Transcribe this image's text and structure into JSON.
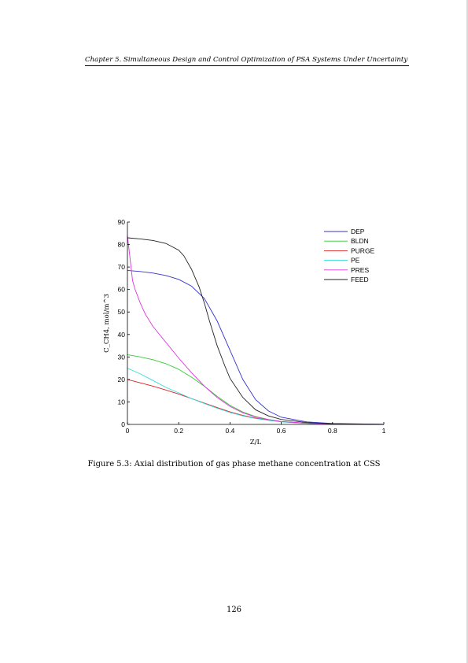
{
  "header": {
    "running_title": "Chapter 5. Simultaneous Design and Control Optimization of PSA Systems Under Uncertainty"
  },
  "figure": {
    "caption": "Figure 5.3: Axial distribution of gas phase methane concentration at CSS"
  },
  "footer": {
    "page_number": "126"
  },
  "chart_data": {
    "type": "line",
    "title": "",
    "xlabel": "Z/L",
    "ylabel": "C_CH4, mol/m^3",
    "xlim": [
      0,
      1
    ],
    "ylim": [
      0,
      90
    ],
    "xticks": [
      0,
      0.2,
      0.4,
      0.6,
      0.8,
      1
    ],
    "xtick_labels": [
      "0",
      "0.2",
      "0.4",
      "0.6",
      "0.8",
      "1"
    ],
    "yticks": [
      0,
      10,
      20,
      30,
      40,
      50,
      60,
      70,
      80,
      90
    ],
    "ytick_labels": [
      "0",
      "10",
      "20",
      "30",
      "40",
      "50",
      "60",
      "70",
      "80",
      "90"
    ],
    "grid": false,
    "legend_position": "top-right",
    "series": [
      {
        "name": "DEP",
        "color": "#3333cc",
        "x": [
          0,
          0.05,
          0.1,
          0.15,
          0.2,
          0.25,
          0.3,
          0.35,
          0.4,
          0.45,
          0.5,
          0.55,
          0.6,
          0.7,
          0.8,
          1.0
        ],
        "y": [
          68.5,
          68,
          67.3,
          66.2,
          64.5,
          61.5,
          56,
          46,
          33,
          20,
          11,
          6,
          3.2,
          1.1,
          0.4,
          0.05
        ]
      },
      {
        "name": "BLDN",
        "color": "#33cc33",
        "x": [
          0,
          0.05,
          0.1,
          0.15,
          0.2,
          0.25,
          0.3,
          0.35,
          0.4,
          0.45,
          0.5,
          0.55,
          0.6,
          0.7,
          0.8,
          1.0
        ],
        "y": [
          31,
          30,
          28.8,
          27,
          24.5,
          21,
          17,
          12.5,
          8.5,
          5.5,
          3.5,
          2.2,
          1.3,
          0.5,
          0.2,
          0.03
        ]
      },
      {
        "name": "PURGE",
        "color": "#dd2222",
        "x": [
          0,
          0.05,
          0.1,
          0.15,
          0.2,
          0.25,
          0.3,
          0.35,
          0.4,
          0.45,
          0.5,
          0.55,
          0.6,
          0.7,
          0.8,
          1.0
        ],
        "y": [
          20,
          18.5,
          17,
          15.3,
          13.5,
          11.5,
          9.5,
          7.5,
          5.6,
          4,
          2.8,
          1.9,
          1.2,
          0.5,
          0.2,
          0.03
        ]
      },
      {
        "name": "PE",
        "color": "#33dddd",
        "x": [
          0,
          0.05,
          0.1,
          0.15,
          0.2,
          0.25,
          0.3,
          0.35,
          0.4,
          0.45,
          0.5,
          0.55,
          0.6,
          0.7,
          0.8,
          1.0
        ],
        "y": [
          25,
          22.5,
          19.5,
          16.5,
          14,
          11.5,
          9.3,
          7.2,
          5.3,
          3.8,
          2.6,
          1.8,
          1.1,
          0.45,
          0.18,
          0.03
        ]
      },
      {
        "name": "PRES",
        "color": "#dd33dd",
        "x": [
          0,
          0.01,
          0.02,
          0.03,
          0.05,
          0.07,
          0.1,
          0.15,
          0.2,
          0.25,
          0.3,
          0.35,
          0.4,
          0.45,
          0.5,
          0.55,
          0.6,
          0.7,
          0.8,
          1.0
        ],
        "y": [
          84,
          74,
          64,
          60,
          54,
          49,
          43.5,
          36.5,
          29.5,
          23,
          17,
          12,
          8,
          5.2,
          3.3,
          2.1,
          1.3,
          0.5,
          0.2,
          0.03
        ]
      },
      {
        "name": "FEED",
        "color": "#222222",
        "x": [
          0,
          0.05,
          0.1,
          0.15,
          0.2,
          0.22,
          0.25,
          0.28,
          0.3,
          0.32,
          0.35,
          0.38,
          0.4,
          0.45,
          0.5,
          0.55,
          0.6,
          0.7,
          0.8,
          1.0
        ],
        "y": [
          83,
          82.5,
          81.8,
          80.5,
          77.5,
          75,
          69,
          61,
          54,
          46,
          35,
          26,
          20.5,
          12,
          6.5,
          3.8,
          2.2,
          0.8,
          0.3,
          0.03
        ]
      }
    ]
  }
}
